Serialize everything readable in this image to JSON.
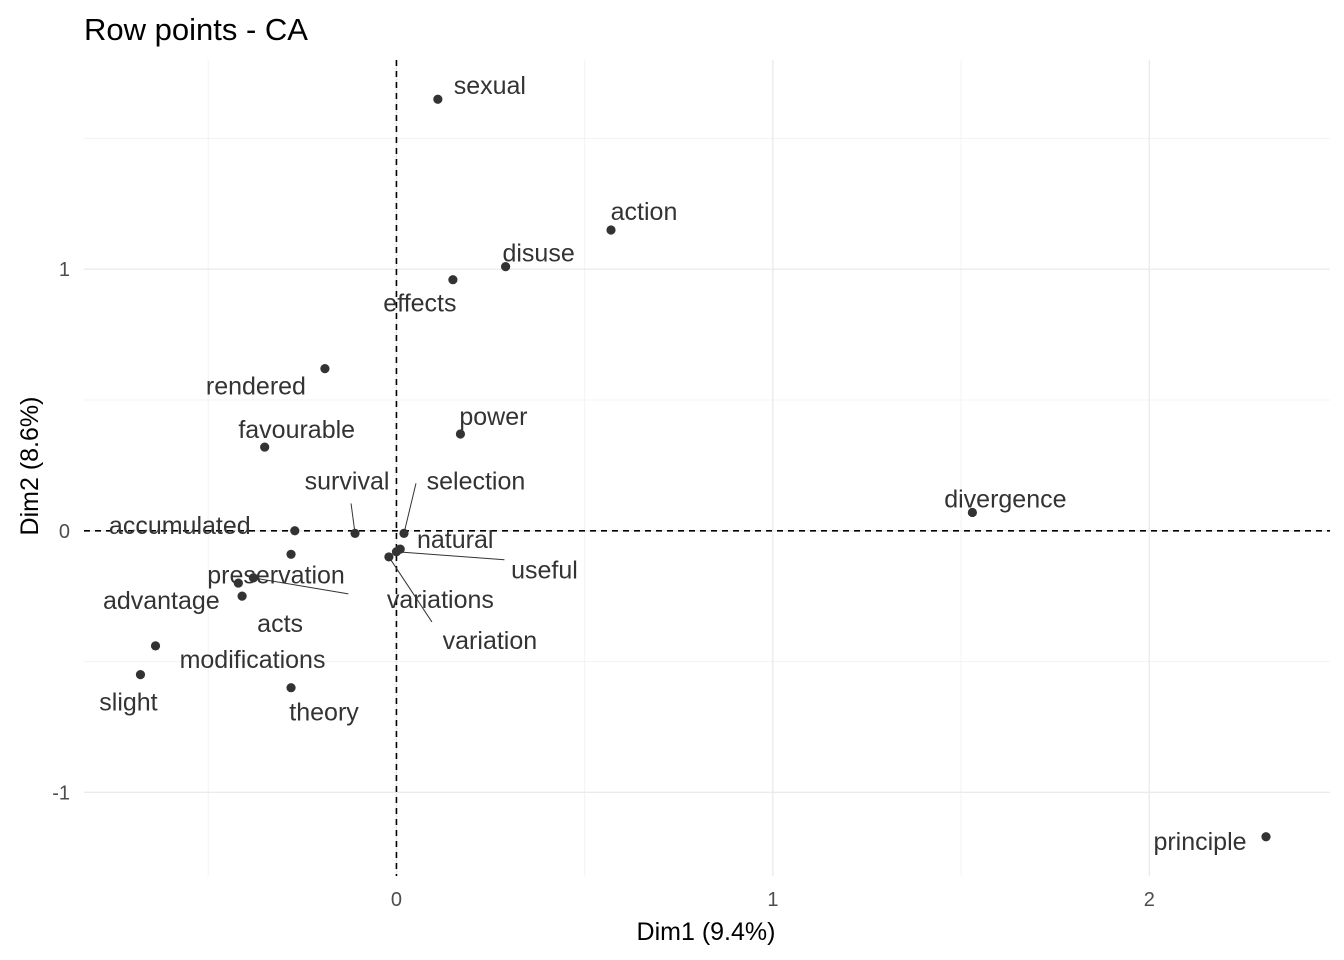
{
  "chart_data": {
    "type": "scatter",
    "title": "Row points - CA",
    "xlabel": "Dim1 (9.4%)",
    "ylabel": "Dim2 (8.6%)",
    "xlim": [
      -0.83,
      2.48
    ],
    "ylim": [
      -1.32,
      1.8
    ],
    "x_ticks": [
      0,
      1,
      2
    ],
    "y_ticks": [
      -1,
      0,
      1
    ],
    "grid": true,
    "reference_lines": {
      "x": 0,
      "y": 0,
      "style": "dashed"
    },
    "point_color": "#333333",
    "points": [
      {
        "label": "sexual",
        "x": 0.11,
        "y": 1.65
      },
      {
        "label": "action",
        "x": 0.57,
        "y": 1.15
      },
      {
        "label": "disuse",
        "x": 0.29,
        "y": 1.01
      },
      {
        "label": "effects",
        "x": 0.15,
        "y": 0.96
      },
      {
        "label": "rendered",
        "x": -0.19,
        "y": 0.62
      },
      {
        "label": "favourable",
        "x": -0.35,
        "y": 0.32
      },
      {
        "label": "power",
        "x": 0.17,
        "y": 0.37
      },
      {
        "label": "divergence",
        "x": 1.53,
        "y": 0.07
      },
      {
        "label": "survival",
        "x": -0.11,
        "y": -0.01
      },
      {
        "label": "selection",
        "x": 0.02,
        "y": -0.01
      },
      {
        "label": "natural",
        "x": 0.01,
        "y": -0.07
      },
      {
        "label": "accumulated",
        "x": -0.27,
        "y": 0.0
      },
      {
        "label": "useful",
        "x": 0.0,
        "y": -0.08
      },
      {
        "label": "preservation",
        "x": -0.28,
        "y": -0.09
      },
      {
        "label": "variations",
        "x": -0.38,
        "y": -0.18
      },
      {
        "label": "variation",
        "x": -0.02,
        "y": -0.1
      },
      {
        "label": "advantage",
        "x": -0.42,
        "y": -0.2
      },
      {
        "label": "acts",
        "x": -0.41,
        "y": -0.25
      },
      {
        "label": "modifications",
        "x": -0.64,
        "y": -0.44
      },
      {
        "label": "slight",
        "x": -0.68,
        "y": -0.55
      },
      {
        "label": "theory",
        "x": -0.28,
        "y": -0.6
      },
      {
        "label": "principle",
        "x": 2.31,
        "y": -1.17
      }
    ]
  }
}
